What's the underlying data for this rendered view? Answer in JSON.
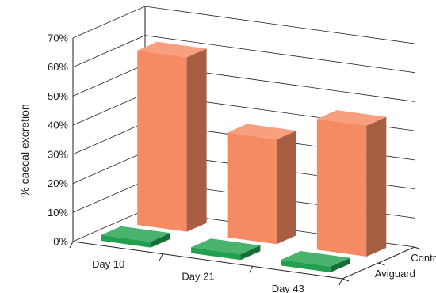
{
  "chart_data": {
    "type": "bar",
    "style": "3d",
    "ylabel": "% caecal excretion",
    "ylim": [
      0,
      70
    ],
    "yticks": [
      "0%",
      "10%",
      "20%",
      "30%",
      "40%",
      "50%",
      "60%",
      "70%"
    ],
    "categories": [
      "Day 10",
      "Day 21",
      "Day 43"
    ],
    "series": [
      {
        "name": "Control",
        "values": [
          60,
          36,
          45
        ],
        "color": "#f58a63"
      },
      {
        "name": "Aviguard",
        "values": [
          2,
          2,
          2
        ],
        "color": "#21a14f"
      }
    ],
    "grid": true
  }
}
